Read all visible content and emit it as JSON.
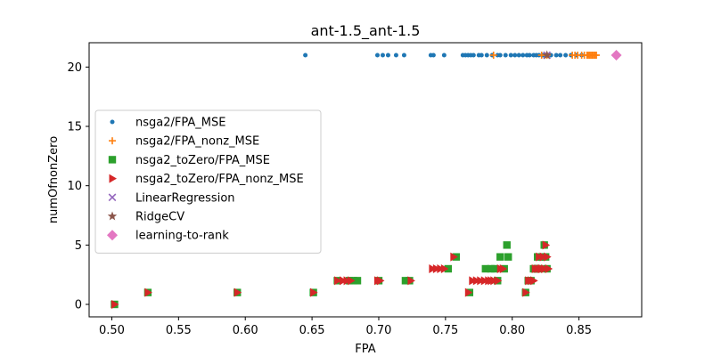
{
  "chart_data": {
    "type": "scatter",
    "title": "ant-1.5_ant-1.5",
    "xlabel": "FPA",
    "ylabel": "numOfnonZero",
    "xlim": [
      0.483,
      0.897
    ],
    "ylim": [
      -1.05,
      22.05
    ],
    "xticks": [
      0.5,
      0.55,
      0.6,
      0.65,
      0.7,
      0.75,
      0.8,
      0.85
    ],
    "xtick_labels": [
      "0.50",
      "0.55",
      "0.60",
      "0.65",
      "0.70",
      "0.75",
      "0.80",
      "0.85"
    ],
    "yticks": [
      0,
      5,
      10,
      15,
      20
    ],
    "ytick_labels": [
      "0",
      "5",
      "10",
      "15",
      "20"
    ],
    "grid": false,
    "legend_position": "center-left",
    "series": [
      {
        "name": "nsga2/FPA_MSE",
        "color": "#1f77b4",
        "marker": "circle-small",
        "points": [
          [
            0.645,
            21
          ],
          [
            0.699,
            21
          ],
          [
            0.703,
            21
          ],
          [
            0.707,
            21
          ],
          [
            0.713,
            21
          ],
          [
            0.719,
            21
          ],
          [
            0.739,
            21
          ],
          [
            0.741,
            21
          ],
          [
            0.749,
            21
          ],
          [
            0.763,
            21
          ],
          [
            0.765,
            21
          ],
          [
            0.767,
            21
          ],
          [
            0.769,
            21
          ],
          [
            0.771,
            21
          ],
          [
            0.775,
            21
          ],
          [
            0.777,
            21
          ],
          [
            0.781,
            21
          ],
          [
            0.785,
            21
          ],
          [
            0.789,
            21
          ],
          [
            0.791,
            21
          ],
          [
            0.795,
            21
          ],
          [
            0.799,
            21
          ],
          [
            0.802,
            21
          ],
          [
            0.805,
            21
          ],
          [
            0.808,
            21
          ],
          [
            0.811,
            21
          ],
          [
            0.813,
            21
          ],
          [
            0.816,
            21
          ],
          [
            0.818,
            21
          ],
          [
            0.82,
            21
          ],
          [
            0.823,
            21
          ],
          [
            0.826,
            21
          ],
          [
            0.829,
            21
          ],
          [
            0.833,
            21
          ],
          [
            0.836,
            21
          ],
          [
            0.84,
            21
          ],
          [
            0.844,
            21
          ],
          [
            0.848,
            21
          ],
          [
            0.852,
            21
          ],
          [
            0.857,
            21
          ]
        ]
      },
      {
        "name": "nsga2/FPA_nonz_MSE",
        "color": "#ff7f0e",
        "marker": "plus",
        "points": [
          [
            0.786,
            21
          ],
          [
            0.822,
            21
          ],
          [
            0.826,
            21
          ],
          [
            0.845,
            21
          ],
          [
            0.847,
            21
          ],
          [
            0.849,
            21
          ],
          [
            0.852,
            21
          ],
          [
            0.854,
            21
          ],
          [
            0.856,
            21
          ],
          [
            0.857,
            21
          ],
          [
            0.858,
            21
          ],
          [
            0.859,
            21
          ],
          [
            0.86,
            21
          ],
          [
            0.861,
            21
          ],
          [
            0.862,
            21
          ],
          [
            0.863,
            21
          ]
        ]
      },
      {
        "name": "nsga2_toZero/FPA_MSE",
        "color": "#2ca02c",
        "marker": "square",
        "points": [
          [
            0.502,
            0
          ],
          [
            0.527,
            1
          ],
          [
            0.594,
            1
          ],
          [
            0.651,
            1
          ],
          [
            0.669,
            2
          ],
          [
            0.678,
            2
          ],
          [
            0.681,
            2
          ],
          [
            0.684,
            2
          ],
          [
            0.7,
            2
          ],
          [
            0.72,
            2
          ],
          [
            0.723,
            2
          ],
          [
            0.752,
            3
          ],
          [
            0.758,
            4
          ],
          [
            0.768,
            1
          ],
          [
            0.78,
            3
          ],
          [
            0.784,
            3
          ],
          [
            0.787,
            3
          ],
          [
            0.789,
            2
          ],
          [
            0.791,
            4
          ],
          [
            0.794,
            3
          ],
          [
            0.796,
            5
          ],
          [
            0.797,
            4
          ],
          [
            0.81,
            1
          ],
          [
            0.812,
            2
          ],
          [
            0.814,
            2
          ],
          [
            0.816,
            3
          ],
          [
            0.818,
            3
          ],
          [
            0.819,
            4
          ],
          [
            0.82,
            3
          ],
          [
            0.822,
            4
          ],
          [
            0.824,
            5
          ],
          [
            0.825,
            4
          ],
          [
            0.826,
            3
          ]
        ]
      },
      {
        "name": "nsga2_toZero/FPA_nonz_MSE",
        "color": "#d62728",
        "marker": "triangle-right",
        "points": [
          [
            0.502,
            0
          ],
          [
            0.527,
            1
          ],
          [
            0.594,
            1
          ],
          [
            0.651,
            1
          ],
          [
            0.669,
            2
          ],
          [
            0.673,
            2
          ],
          [
            0.676,
            2
          ],
          [
            0.679,
            2
          ],
          [
            0.699,
            2
          ],
          [
            0.701,
            2
          ],
          [
            0.724,
            2
          ],
          [
            0.74,
            3
          ],
          [
            0.743,
            3
          ],
          [
            0.746,
            3
          ],
          [
            0.749,
            3
          ],
          [
            0.756,
            4
          ],
          [
            0.767,
            1
          ],
          [
            0.77,
            2
          ],
          [
            0.773,
            2
          ],
          [
            0.776,
            2
          ],
          [
            0.779,
            2
          ],
          [
            0.782,
            2
          ],
          [
            0.784,
            2
          ],
          [
            0.786,
            2
          ],
          [
            0.789,
            2
          ],
          [
            0.791,
            3
          ],
          [
            0.793,
            3
          ],
          [
            0.81,
            1
          ],
          [
            0.812,
            2
          ],
          [
            0.814,
            2
          ],
          [
            0.816,
            2
          ],
          [
            0.817,
            3
          ],
          [
            0.819,
            3
          ],
          [
            0.82,
            4
          ],
          [
            0.821,
            3
          ],
          [
            0.822,
            3
          ],
          [
            0.823,
            4
          ],
          [
            0.824,
            3
          ],
          [
            0.825,
            5
          ],
          [
            0.826,
            4
          ],
          [
            0.827,
            3
          ]
        ]
      },
      {
        "name": "LinearRegression",
        "color": "#9467bd",
        "marker": "x",
        "points": [
          [
            0.826,
            21
          ]
        ]
      },
      {
        "name": "RidgeCV",
        "color": "#8c564b",
        "marker": "star",
        "points": [
          [
            0.826,
            21
          ]
        ]
      },
      {
        "name": "learning-to-rank",
        "color": "#e377c2",
        "marker": "diamond",
        "points": [
          [
            0.878,
            21
          ]
        ]
      }
    ]
  }
}
